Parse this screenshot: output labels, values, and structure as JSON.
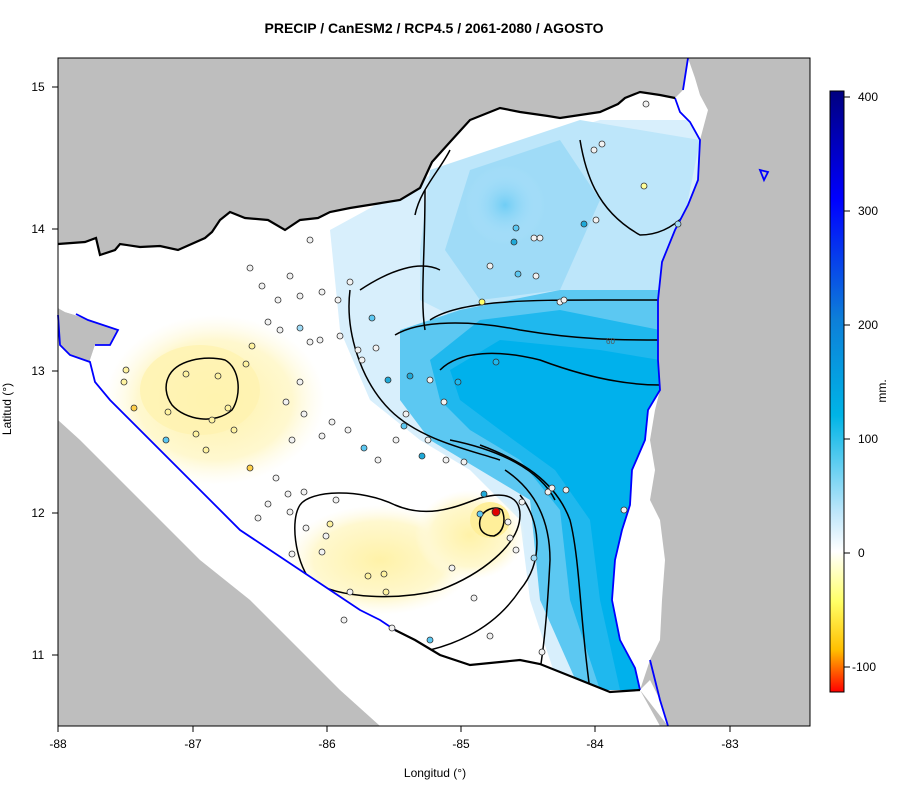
{
  "title": "PRECIP / CanESM2 / RCP4.5 / 2061-2080 / AGOSTO",
  "x_axis": {
    "label": "Longitud (°)",
    "ticks": [
      "-88",
      "-87",
      "-86",
      "-85",
      "-84",
      "-83"
    ]
  },
  "y_axis": {
    "label": "Latitud (°)",
    "ticks": [
      "11",
      "12",
      "13",
      "14",
      "15"
    ]
  },
  "colorbar": {
    "units": "mm.",
    "ticks": [
      "400",
      "300",
      "200",
      "100",
      "0",
      "-100"
    ],
    "colors": [
      "#00007f",
      "#0000ff",
      "#0d7fd8",
      "#00b4e6",
      "#ffffff",
      "#ffff66",
      "#ffbf00",
      "#ff0000"
    ]
  },
  "contour_labels": [
    "60"
  ],
  "colors": {
    "land_outside": "#bebebe",
    "sea": "#ffffff",
    "coast": "#0000ff",
    "border": "#000000"
  }
}
